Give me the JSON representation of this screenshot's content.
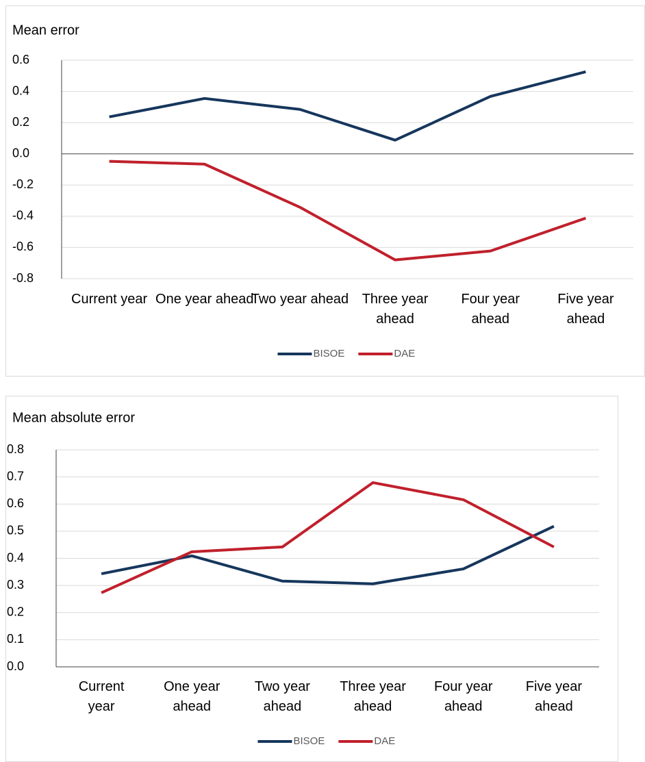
{
  "chart_data": [
    {
      "type": "line",
      "title": "Mean error",
      "categories": [
        "Current year",
        "One year ahead",
        "Two year ahead",
        "Three year ahead",
        "Four year ahead",
        "Five year ahead"
      ],
      "series": [
        {
          "name": "BISOE",
          "color": "#16365c",
          "values": [
            0.237,
            0.355,
            0.285,
            0.088,
            0.368,
            0.526
          ]
        },
        {
          "name": "DAE",
          "color": "#c0202c",
          "values": [
            -0.048,
            -0.066,
            -0.342,
            -0.68,
            -0.623,
            -0.412
          ]
        }
      ],
      "ylim": [
        -0.8,
        0.6
      ],
      "yticks": [
        -0.8,
        -0.6,
        -0.4,
        -0.2,
        {
          "value": 0,
          "label": "0.0"
        },
        0.2,
        0.4,
        0.6
      ],
      "grid": true,
      "legend": "bottom"
    },
    {
      "type": "line",
      "title": "Mean absolute error",
      "categories": [
        "Current year",
        "One year ahead",
        "Two year ahead",
        "Three year ahead",
        "Four year ahead",
        "Five year ahead"
      ],
      "series": [
        {
          "name": "BISOE",
          "color": "#16365c",
          "values": [
            0.343,
            0.409,
            0.316,
            0.306,
            0.361,
            0.518
          ]
        },
        {
          "name": "DAE",
          "color": "#c0202c",
          "values": [
            0.273,
            0.424,
            0.442,
            0.679,
            0.616,
            0.442
          ]
        }
      ],
      "ylim": [
        0,
        0.8
      ],
      "yticks": [
        {
          "value": 0,
          "label": "0.0"
        },
        0.1,
        0.2,
        0.3,
        0.4,
        0.5,
        0.6,
        0.7,
        0.8
      ],
      "grid": true,
      "legend": "bottom"
    }
  ]
}
